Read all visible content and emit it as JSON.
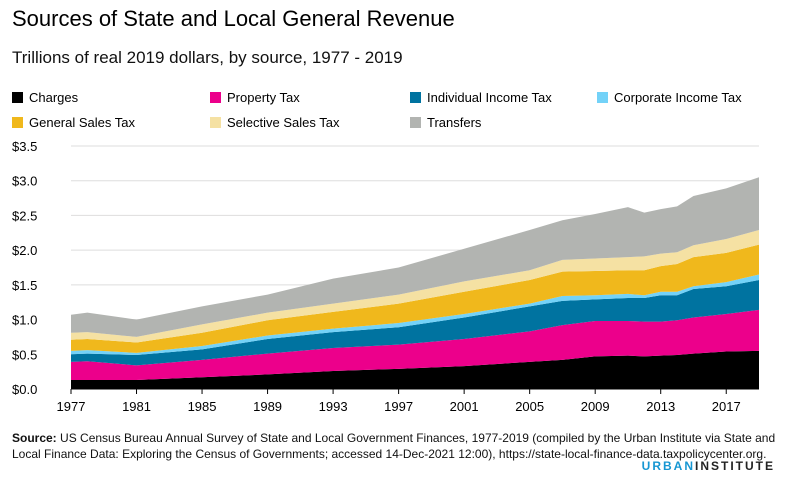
{
  "chart_data": {
    "type": "area",
    "stacked": true,
    "title": "Sources of State and Local General Revenue",
    "subtitle": "Trillions of real 2019 dollars, by source, 1977 - 2019",
    "xlabel": "",
    "ylabel": "",
    "ylim": [
      0,
      3.5
    ],
    "xlim": [
      1977,
      2019
    ],
    "grid": true,
    "legend_position": "top",
    "y_ticks": [
      "$0.0",
      "$0.5",
      "$1.0",
      "$1.5",
      "$2.0",
      "$2.5",
      "$3.0",
      "$3.5"
    ],
    "x_ticks": [
      "1977",
      "1981",
      "1985",
      "1989",
      "1993",
      "1997",
      "2001",
      "2005",
      "2009",
      "2013",
      "2017"
    ],
    "x": [
      1977,
      1978,
      1981,
      1985,
      1989,
      1993,
      1997,
      2001,
      2005,
      2007,
      2009,
      2011,
      2012,
      2013,
      2014,
      2015,
      2017,
      2019
    ],
    "series": [
      {
        "name": "Charges",
        "color": "#000000",
        "values": [
          0.13,
          0.13,
          0.13,
          0.17,
          0.21,
          0.26,
          0.29,
          0.33,
          0.39,
          0.42,
          0.47,
          0.48,
          0.47,
          0.48,
          0.49,
          0.51,
          0.54,
          0.55
        ]
      },
      {
        "name": "Property Tax",
        "color": "#ec008b",
        "values": [
          0.26,
          0.27,
          0.21,
          0.25,
          0.3,
          0.33,
          0.35,
          0.39,
          0.44,
          0.5,
          0.51,
          0.5,
          0.5,
          0.49,
          0.5,
          0.52,
          0.54,
          0.59
        ]
      },
      {
        "name": "Individual Income Tax",
        "color": "#0073a0",
        "values": [
          0.11,
          0.11,
          0.15,
          0.15,
          0.21,
          0.23,
          0.25,
          0.31,
          0.36,
          0.35,
          0.31,
          0.33,
          0.34,
          0.38,
          0.36,
          0.41,
          0.4,
          0.43
        ]
      },
      {
        "name": "Corporate Income Tax",
        "color": "#73d2f8",
        "values": [
          0.05,
          0.05,
          0.03,
          0.05,
          0.05,
          0.05,
          0.06,
          0.05,
          0.04,
          0.07,
          0.06,
          0.06,
          0.04,
          0.05,
          0.05,
          0.04,
          0.06,
          0.08
        ]
      },
      {
        "name": "General Sales Tax",
        "color": "#f0b81c",
        "values": [
          0.16,
          0.16,
          0.15,
          0.19,
          0.22,
          0.24,
          0.28,
          0.32,
          0.34,
          0.35,
          0.35,
          0.34,
          0.36,
          0.37,
          0.4,
          0.42,
          0.42,
          0.43
        ]
      },
      {
        "name": "Selective Sales Tax",
        "color": "#f5e1a3",
        "values": [
          0.1,
          0.1,
          0.08,
          0.12,
          0.11,
          0.12,
          0.13,
          0.15,
          0.14,
          0.17,
          0.18,
          0.19,
          0.2,
          0.18,
          0.17,
          0.17,
          0.2,
          0.21
        ]
      },
      {
        "name": "Transfers",
        "color": "#b2b4b1",
        "values": [
          0.26,
          0.28,
          0.25,
          0.26,
          0.26,
          0.36,
          0.39,
          0.47,
          0.58,
          0.57,
          0.64,
          0.72,
          0.63,
          0.64,
          0.66,
          0.71,
          0.73,
          0.76
        ]
      }
    ]
  },
  "source": {
    "label": "Source:",
    "text": " US Census Bureau Annual Survey of State and Local Government Finances, 1977-2019 (compiled by the Urban Institute via State and Local Finance Data: Exploring the Census of Governments; accessed 14-Dec-2021 12:00), https://state-local-finance-data.taxpolicycenter.org."
  },
  "logo": {
    "part1": "URBAN",
    "part2": "INSTITUTE"
  }
}
